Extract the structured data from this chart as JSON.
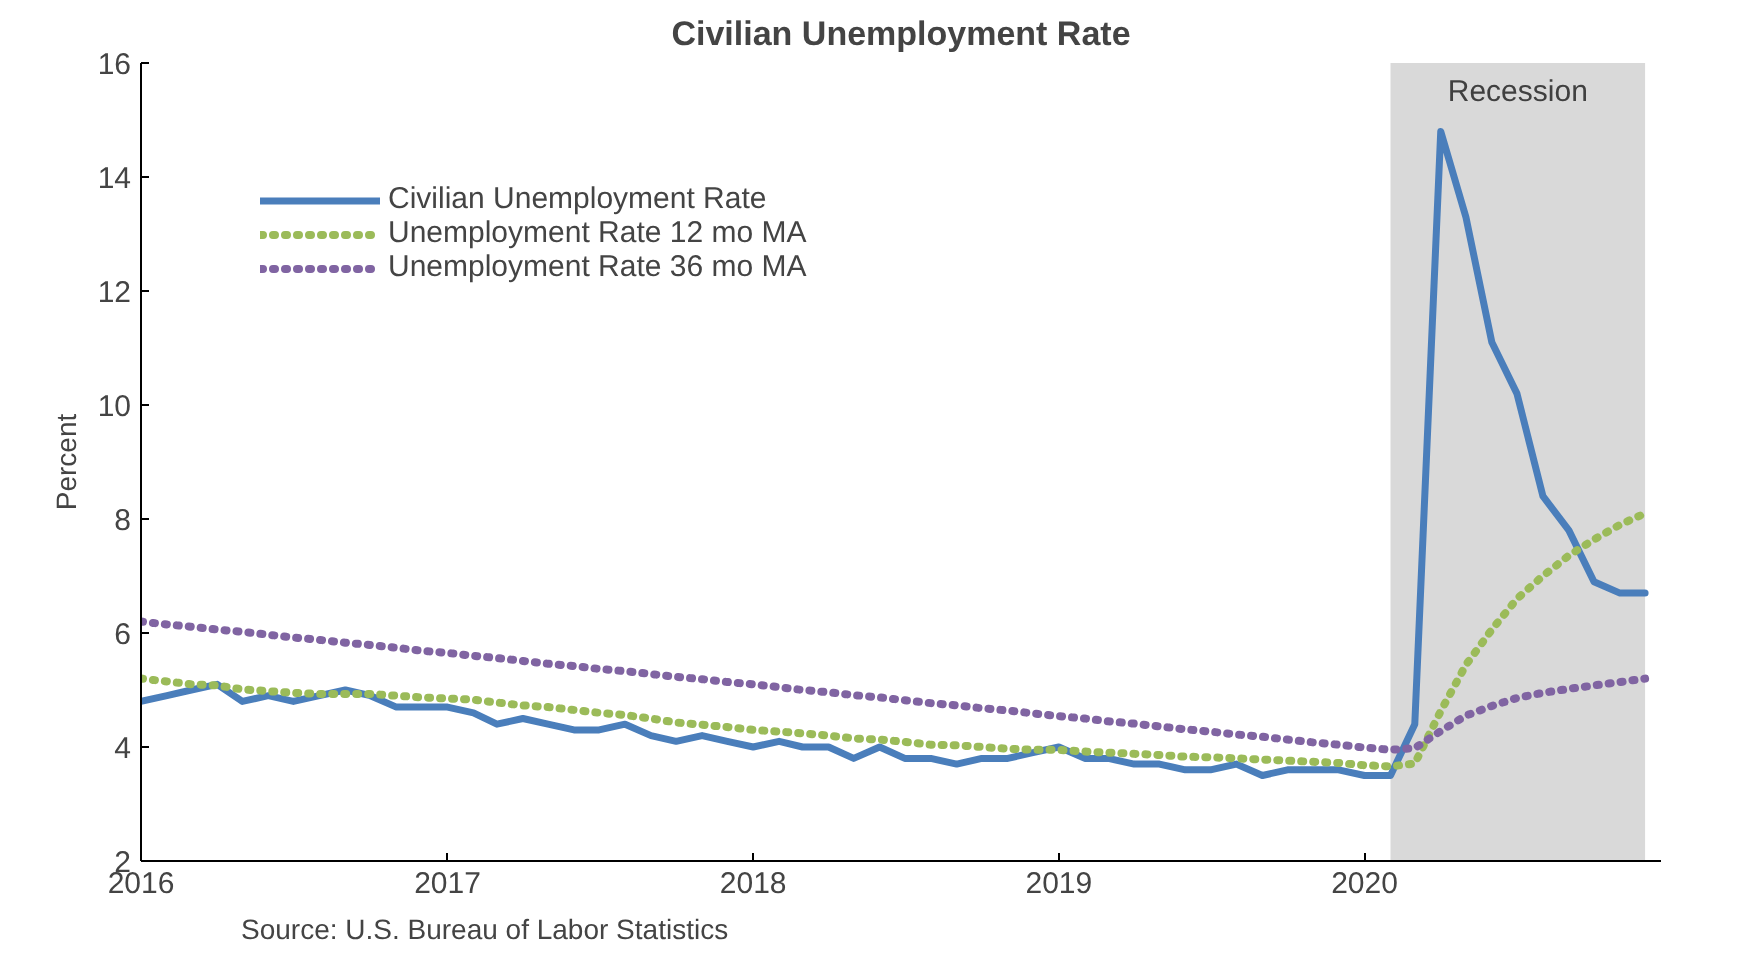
{
  "chart_data": {
    "type": "line",
    "title": "Civilian Unemployment Rate",
    "ylabel": "Percent",
    "x": [
      "2016-01",
      "2016-02",
      "2016-03",
      "2016-04",
      "2016-05",
      "2016-06",
      "2016-07",
      "2016-08",
      "2016-09",
      "2016-10",
      "2016-11",
      "2016-12",
      "2017-01",
      "2017-02",
      "2017-03",
      "2017-04",
      "2017-05",
      "2017-06",
      "2017-07",
      "2017-08",
      "2017-09",
      "2017-10",
      "2017-11",
      "2017-12",
      "2018-01",
      "2018-02",
      "2018-03",
      "2018-04",
      "2018-05",
      "2018-06",
      "2018-07",
      "2018-08",
      "2018-09",
      "2018-10",
      "2018-11",
      "2018-12",
      "2019-01",
      "2019-02",
      "2019-03",
      "2019-04",
      "2019-05",
      "2019-06",
      "2019-07",
      "2019-08",
      "2019-09",
      "2019-10",
      "2019-11",
      "2019-12",
      "2020-01",
      "2020-02",
      "2020-03",
      "2020-04",
      "2020-05",
      "2020-06",
      "2020-07",
      "2020-08",
      "2020-09",
      "2020-10",
      "2020-11",
      "2020-12"
    ],
    "series": [
      {
        "name": "Civilian Unemployment Rate",
        "color": "#4a7ebb",
        "line_style": "solid",
        "values": [
          4.8,
          4.9,
          5.0,
          5.1,
          4.8,
          4.9,
          4.8,
          4.9,
          5.0,
          4.9,
          4.7,
          4.7,
          4.7,
          4.6,
          4.4,
          4.5,
          4.4,
          4.3,
          4.3,
          4.4,
          4.2,
          4.1,
          4.2,
          4.1,
          4.0,
          4.1,
          4.0,
          4.0,
          3.8,
          4.0,
          3.8,
          3.8,
          3.7,
          3.8,
          3.8,
          3.9,
          4.0,
          3.8,
          3.8,
          3.7,
          3.7,
          3.6,
          3.6,
          3.7,
          3.5,
          3.6,
          3.6,
          3.6,
          3.5,
          3.5,
          4.4,
          14.8,
          13.3,
          11.1,
          10.2,
          8.4,
          7.8,
          6.9,
          6.7,
          6.7
        ]
      },
      {
        "name": "Unemployment Rate 12 mo MA",
        "color": "#9bbb59",
        "line_style": "dotted",
        "values": [
          5.2,
          5.15,
          5.1,
          5.08,
          5.01,
          4.98,
          4.95,
          4.93,
          4.93,
          4.93,
          4.9,
          4.87,
          4.85,
          4.83,
          4.78,
          4.73,
          4.7,
          4.65,
          4.6,
          4.56,
          4.5,
          4.43,
          4.39,
          4.35,
          4.3,
          4.27,
          4.24,
          4.2,
          4.15,
          4.13,
          4.09,
          4.04,
          4.03,
          4.0,
          3.97,
          3.95,
          3.95,
          3.92,
          3.9,
          3.88,
          3.86,
          3.83,
          3.82,
          3.8,
          3.78,
          3.76,
          3.74,
          3.72,
          3.68,
          3.66,
          3.71,
          4.63,
          5.44,
          6.06,
          6.6,
          7.0,
          7.36,
          7.64,
          7.9,
          8.1
        ]
      },
      {
        "name": "Unemployment Rate 36 mo MA",
        "color": "#8064a2",
        "line_style": "dotted",
        "values": [
          6.2,
          6.15,
          6.11,
          6.06,
          6.02,
          5.97,
          5.92,
          5.88,
          5.83,
          5.79,
          5.74,
          5.69,
          5.65,
          5.6,
          5.56,
          5.51,
          5.46,
          5.42,
          5.37,
          5.33,
          5.28,
          5.23,
          5.19,
          5.14,
          5.1,
          5.05,
          5.0,
          4.96,
          4.91,
          4.87,
          4.82,
          4.77,
          4.73,
          4.68,
          4.64,
          4.59,
          4.54,
          4.5,
          4.45,
          4.41,
          4.36,
          4.31,
          4.27,
          4.22,
          4.18,
          4.13,
          4.08,
          4.04,
          3.99,
          3.95,
          3.98,
          4.28,
          4.55,
          4.72,
          4.86,
          4.95,
          5.02,
          5.08,
          5.14,
          5.2
        ]
      }
    ],
    "bands": [
      {
        "axis": "x",
        "from": "2020-02",
        "to": "2020-12",
        "label": "Recession",
        "color": "#d9d9d9"
      }
    ],
    "xlim": [
      "2016-01",
      "2020-12-20"
    ],
    "xticks": [
      "2016",
      "2017",
      "2018",
      "2019",
      "2020"
    ],
    "ylim": [
      2,
      16
    ],
    "yticks": [
      2,
      4,
      6,
      8,
      10,
      12,
      14,
      16
    ],
    "grid": false,
    "legend": "top left",
    "annotations": [
      "Source:  U.S. Bureau of Labor Statistics"
    ]
  }
}
